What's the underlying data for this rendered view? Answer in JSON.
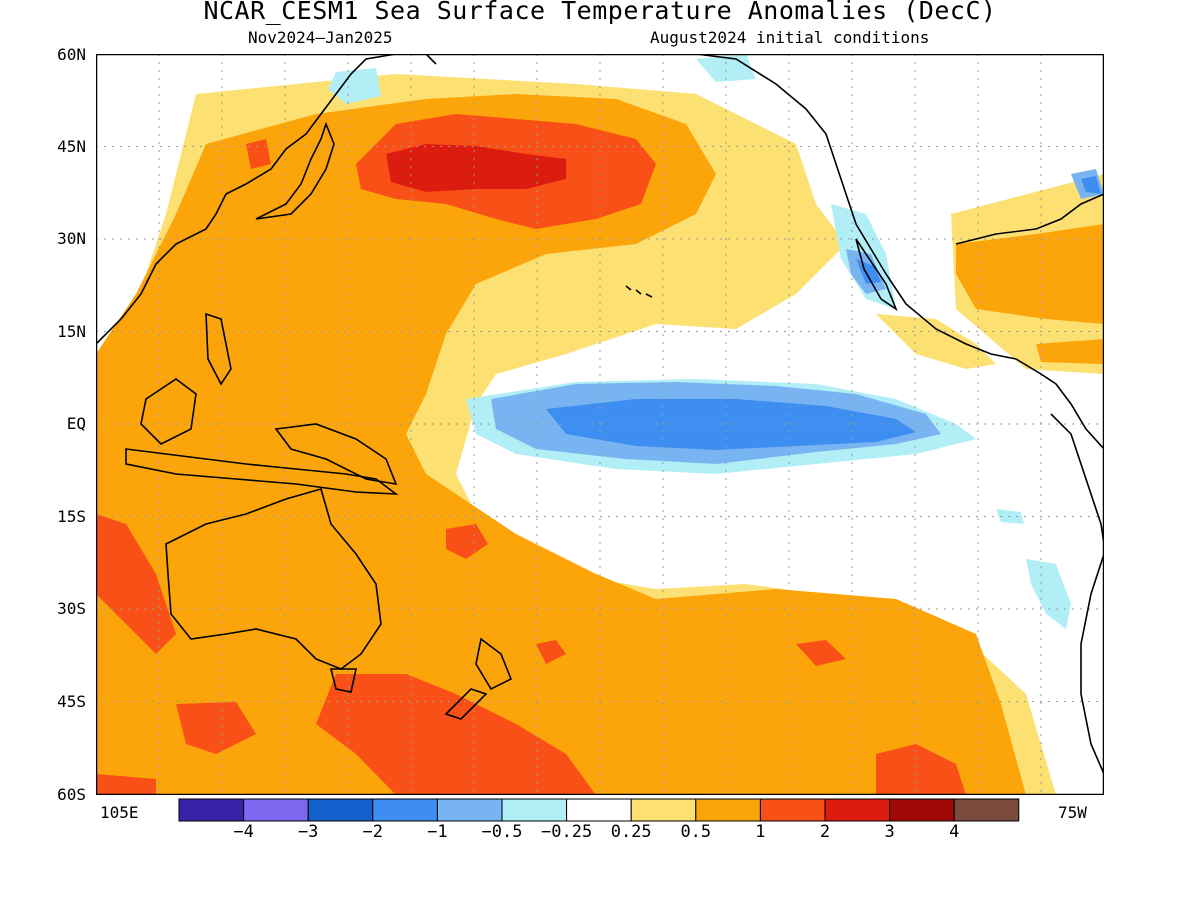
{
  "header": {
    "title": "NCAR_CESM1 Sea Surface Temperature Anomalies (DecC)",
    "period": "Nov2024–Jan2025",
    "init": "August2024 initial conditions"
  },
  "axes": {
    "lat_labels": [
      "60N",
      "45N",
      "30N",
      "15N",
      "EQ",
      "15S",
      "30S",
      "45S",
      "60S"
    ],
    "lon_left": "105E",
    "lon_right": "75W"
  },
  "colorbar": {
    "labels": [
      "−4",
      "−3",
      "−2",
      "−1",
      "−0.5",
      "−0.25",
      "0.25",
      "0.5",
      "1",
      "2",
      "3",
      "4"
    ],
    "colors": [
      "#3a22a8",
      "#7b68ee",
      "#1460cc",
      "#3d8ef0",
      "#78b4f2",
      "#b2eef5",
      "#ffffff",
      "#fde072",
      "#fca50a",
      "#f85016",
      "#dd1c10",
      "#a00808",
      "#7a4a3a"
    ]
  },
  "colors": {
    "land_outline": "#000000",
    "grid": "#9a9a9a",
    "frame": "#000000"
  }
}
